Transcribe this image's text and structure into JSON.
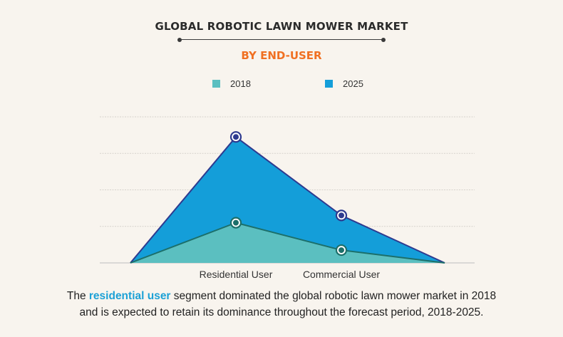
{
  "header": {
    "title": "GLOBAL ROBOTIC LAWN MOWER MARKET",
    "subtitle": "BY END-USER",
    "subtitle_color": "#f07022"
  },
  "legend": {
    "items": [
      {
        "label": "2018",
        "color": "#5bbfc0"
      },
      {
        "label": "2025",
        "color": "#149ed9"
      }
    ]
  },
  "chart_data": {
    "type": "area",
    "title": "GLOBAL ROBOTIC LAWN MOWER MARKET",
    "subtitle": "BY END-USER",
    "categories": [
      "",
      "Residential User",
      "Commercial User",
      ""
    ],
    "series": [
      {
        "name": "2018",
        "values": [
          0,
          1.1,
          0.35,
          0
        ],
        "color": "#5bbfc0",
        "line_color": "#1c6f6a",
        "marker_color": "#1c6f6a"
      },
      {
        "name": "2025",
        "values": [
          0,
          3.45,
          1.3,
          0
        ],
        "color": "#149ed9",
        "line_color": "#2e3a8f",
        "marker_color": "#2e3a8f"
      }
    ],
    "ylim": [
      0,
      4
    ],
    "grid": true,
    "legend": "top-center",
    "xlabel": "",
    "ylabel": ""
  },
  "caption": {
    "before": "The ",
    "highlight": "residential user",
    "after_line1": " segment dominated the global robotic lawn mower market in 2018",
    "line2": "and is expected to retain its dominance throughout the forecast period, 2018-2025."
  }
}
